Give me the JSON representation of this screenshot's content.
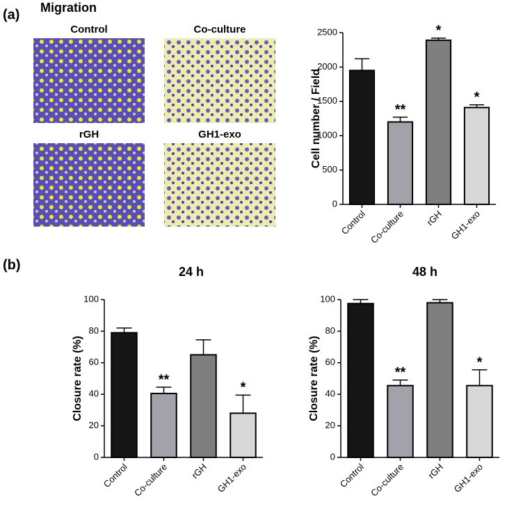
{
  "panels": {
    "a": {
      "label": "(a)",
      "title": "Migration",
      "images": [
        "Control",
        "Co-culture",
        "rGH",
        "GH1-exo"
      ]
    },
    "b": {
      "label": "(b)"
    }
  },
  "chart_data": [
    {
      "type": "bar",
      "ylabel": "Cell number / Field",
      "categories": [
        "Control",
        "Co-culture",
        "rGH",
        "GH1-exo"
      ],
      "values": [
        1950,
        1200,
        2390,
        1410
      ],
      "errors": [
        170,
        70,
        30,
        40
      ],
      "significance": [
        null,
        "**",
        "*",
        "*"
      ],
      "colors": [
        "#161616",
        "#a2a2ab",
        "#7f7f7f",
        "#d8d8d8"
      ],
      "ylim": [
        0,
        2500
      ],
      "yticks": [
        0,
        500,
        1000,
        1500,
        2000,
        2500
      ]
    },
    {
      "type": "bar",
      "title": "24 h",
      "ylabel": "Closure rate (%)",
      "categories": [
        "Control",
        "Co-culture",
        "rGH",
        "GH1-exo"
      ],
      "values": [
        79,
        40.5,
        65,
        28
      ],
      "errors": [
        3,
        4,
        9.5,
        11.5
      ],
      "significance": [
        null,
        "**",
        null,
        "*"
      ],
      "colors": [
        "#161616",
        "#a2a2ab",
        "#7f7f7f",
        "#d8d8d8"
      ],
      "ylim": [
        0,
        100
      ],
      "yticks": [
        0,
        20,
        40,
        60,
        80,
        100
      ]
    },
    {
      "type": "bar",
      "title": "48 h",
      "ylabel": "Closure rate (%)",
      "categories": [
        "Control",
        "Co-culture",
        "rGH",
        "GH1-exo"
      ],
      "values": [
        97.5,
        45.5,
        98,
        45.5
      ],
      "errors": [
        2.5,
        3.5,
        2,
        10
      ],
      "significance": [
        null,
        "**",
        null,
        "*"
      ],
      "colors": [
        "#161616",
        "#a2a2ab",
        "#7f7f7f",
        "#d8d8d8"
      ],
      "ylim": [
        0,
        100
      ],
      "yticks": [
        0,
        20,
        40,
        60,
        80,
        100
      ]
    }
  ]
}
